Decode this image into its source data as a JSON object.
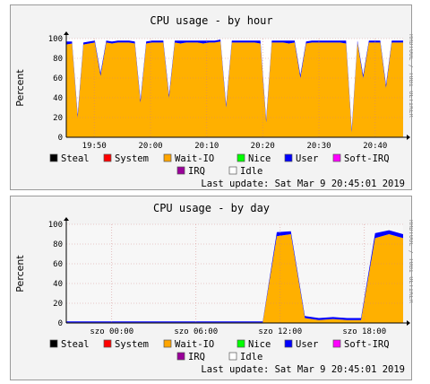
{
  "chart_data": [
    {
      "type": "area",
      "title": "CPU usage - by hour",
      "ylabel": "Percent",
      "side_text": "RRDTOOL / TOBI OETIKER",
      "ylim": [
        0,
        100
      ],
      "yticks": [
        0,
        20,
        40,
        60,
        80,
        100
      ],
      "grid": true,
      "xticks": [
        "19:50",
        "20:00",
        "20:10",
        "20:20",
        "20:30",
        "20:40"
      ],
      "x_range": [
        "19:45",
        "20:45"
      ],
      "background": "#ffa500",
      "series": [
        {
          "name": "Wait-IO",
          "color": "#ffb000",
          "x_min": [
            0,
            1,
            2,
            3,
            4,
            5,
            6,
            7,
            8,
            9,
            10,
            11,
            12,
            13,
            14,
            15,
            16,
            17,
            18,
            19,
            20,
            21,
            22,
            23,
            24,
            25,
            26,
            27,
            28,
            29,
            30,
            31,
            32,
            33,
            34,
            35,
            36,
            37,
            38,
            39,
            40,
            41,
            42,
            43,
            44,
            45,
            46,
            47,
            48,
            49,
            50,
            51,
            52,
            53,
            54,
            55,
            56,
            57,
            58,
            59
          ],
          "values": [
            94,
            95,
            20,
            94,
            95,
            96,
            62,
            96,
            95,
            96,
            96,
            96,
            95,
            35,
            95,
            96,
            96,
            96,
            40,
            96,
            95,
            96,
            96,
            96,
            95,
            96,
            96,
            97,
            30,
            96,
            96,
            96,
            96,
            96,
            95,
            15,
            96,
            96,
            96,
            95,
            96,
            60,
            95,
            96,
            96,
            96,
            96,
            96,
            96,
            95,
            5,
            96,
            60,
            96,
            96,
            96,
            50,
            96,
            96,
            96
          ]
        },
        {
          "name": "User",
          "color": "#0000ff",
          "values": [
            3,
            2,
            3,
            2,
            2,
            2,
            3,
            2,
            2,
            2,
            2,
            2,
            2,
            3,
            2,
            2,
            2,
            2,
            3,
            2,
            3,
            2,
            2,
            2,
            3,
            2,
            2,
            2,
            3,
            2,
            2,
            2,
            2,
            2,
            3,
            3,
            2,
            2,
            2,
            3,
            2,
            3,
            2,
            2,
            2,
            2,
            2,
            2,
            2,
            3,
            3,
            2,
            3,
            2,
            2,
            2,
            3,
            2,
            2,
            2
          ]
        },
        {
          "name": "Idle",
          "color": "#ffffff"
        }
      ],
      "legend": [
        "Steal",
        "System",
        "Wait-IO",
        "Nice",
        "User",
        "Soft-IRQ",
        "IRQ",
        "Idle"
      ],
      "legend_colors": [
        "#000000",
        "#ff0000",
        "#ffa500",
        "#00ff00",
        "#0000ff",
        "#ff00ff",
        "#990099",
        "#ffffff"
      ],
      "last_update": "Last update: Sat Mar  9 20:45:01 2019"
    },
    {
      "type": "area",
      "title": "CPU usage - by day",
      "ylabel": "Percent",
      "side_text": "RRDTOOL / TOBI OETIKER",
      "ylim": [
        0,
        100
      ],
      "yticks": [
        0,
        20,
        40,
        60,
        80,
        100
      ],
      "grid": true,
      "xticks": [
        "szo 00:00",
        "szo 06:00",
        "szo 12:00",
        "szo 18:00"
      ],
      "x_range": [
        "20:45 prev day",
        "20:45"
      ],
      "background": "#ffffff",
      "series": [
        {
          "name": "Wait-IO",
          "color": "#ffb000",
          "x_hours": [
            0,
            1,
            2,
            3,
            4,
            5,
            6,
            7,
            8,
            9,
            10,
            11,
            12,
            13,
            14,
            15,
            16,
            17,
            18,
            19,
            20,
            21,
            22,
            23,
            24
          ],
          "values": [
            0.5,
            0.5,
            0.5,
            0.5,
            0.5,
            0.5,
            0.5,
            0.5,
            0.5,
            0.5,
            0.5,
            0.5,
            0.5,
            0.5,
            0.5,
            88,
            90,
            5,
            3,
            4,
            3,
            3,
            86,
            90,
            86
          ]
        },
        {
          "name": "User",
          "color": "#0000ff",
          "values": [
            1,
            1,
            1,
            1,
            1,
            1,
            1,
            1,
            1,
            1,
            1,
            1,
            1,
            1,
            1,
            4,
            3,
            2,
            2,
            2,
            2,
            2,
            5,
            4,
            4
          ]
        },
        {
          "name": "Idle",
          "color": "#ffffff"
        }
      ],
      "legend": [
        "Steal",
        "System",
        "Wait-IO",
        "Nice",
        "User",
        "Soft-IRQ",
        "IRQ",
        "Idle"
      ],
      "legend_colors": [
        "#000000",
        "#ff0000",
        "#ffa500",
        "#00ff00",
        "#0000ff",
        "#ff00ff",
        "#990099",
        "#ffffff"
      ],
      "last_update": "Last update: Sat Mar  9 20:45:01 2019"
    }
  ]
}
